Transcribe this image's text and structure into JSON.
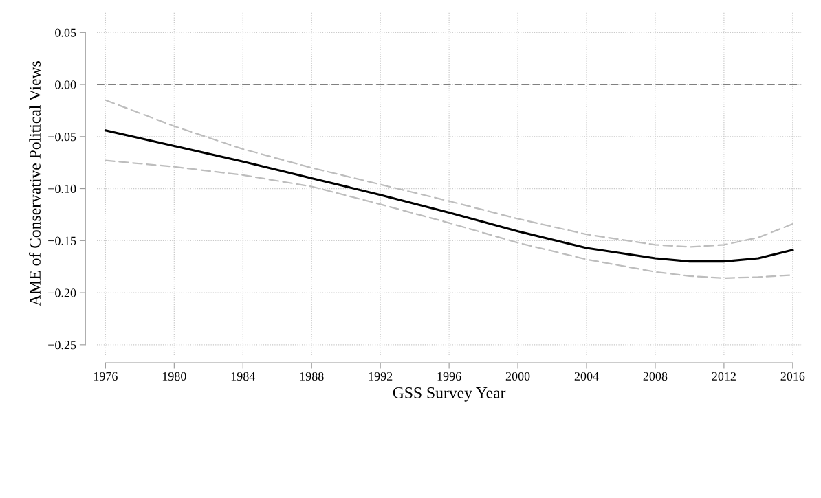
{
  "chart_data": {
    "type": "line",
    "xlabel": "GSS Survey Year",
    "ylabel": "AME of Conservative Political Views",
    "x": [
      1976,
      1980,
      1984,
      1988,
      1992,
      1996,
      2000,
      2004,
      2008,
      2010,
      2012,
      2014,
      2016
    ],
    "series": [
      {
        "color": "#bdbdbd",
        "line_style": "dashed",
        "values": [
          -0.015,
          -0.04,
          -0.062,
          -0.08,
          -0.096,
          -0.112,
          -0.129,
          -0.144,
          -0.154,
          -0.156,
          -0.154,
          -0.147,
          -0.134
        ]
      },
      {
        "color": "#bdbdbd",
        "line_style": "dashed",
        "values": [
          -0.073,
          -0.079,
          -0.087,
          -0.098,
          -0.115,
          -0.133,
          -0.152,
          -0.168,
          -0.18,
          -0.184,
          -0.186,
          -0.185,
          -0.183
        ]
      },
      {
        "color": "#000000",
        "line_style": "solid",
        "values": [
          -0.044,
          -0.059,
          -0.074,
          -0.09,
          -0.106,
          -0.123,
          -0.141,
          -0.157,
          -0.167,
          -0.17,
          -0.17,
          -0.167,
          -0.159
        ]
      }
    ],
    "xlim": [
      1975.5,
      2016.5
    ],
    "ylim": [
      -0.26,
      0.07
    ],
    "xticks": [
      1976,
      1980,
      1984,
      1988,
      1992,
      1996,
      2000,
      2004,
      2008,
      2012,
      2016
    ],
    "yticks": [
      {
        "value": 0.05,
        "label": "0.05"
      },
      {
        "value": 0.0,
        "label": "0.00"
      },
      {
        "value": -0.05,
        "label": "−0.05"
      },
      {
        "value": -0.1,
        "label": "−0.10"
      },
      {
        "value": -0.15,
        "label": "−0.15"
      },
      {
        "value": -0.2,
        "label": "−0.20"
      },
      {
        "value": -0.25,
        "label": "−0.25"
      }
    ],
    "ref_lines": [
      {
        "axis": "y",
        "value": 0,
        "color": "#808080",
        "line_style": "dashed"
      }
    ],
    "grid": true,
    "legend": false,
    "marker": "none"
  }
}
